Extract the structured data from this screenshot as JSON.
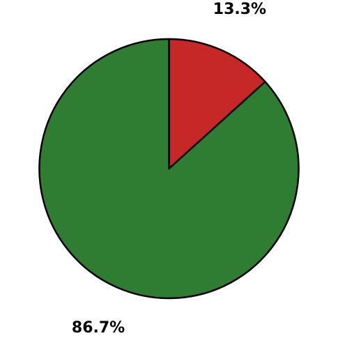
{
  "chart_data": {
    "type": "pie",
    "title": "",
    "start_angle_deg": 90,
    "direction": "clockwise",
    "slices": [
      {
        "value": 13.3,
        "label": "13.3%",
        "color": "#c62828"
      },
      {
        "value": 86.7,
        "label": "86.7%",
        "color": "#2e7d32"
      }
    ],
    "edge_color": "#000000",
    "legend": "none"
  }
}
